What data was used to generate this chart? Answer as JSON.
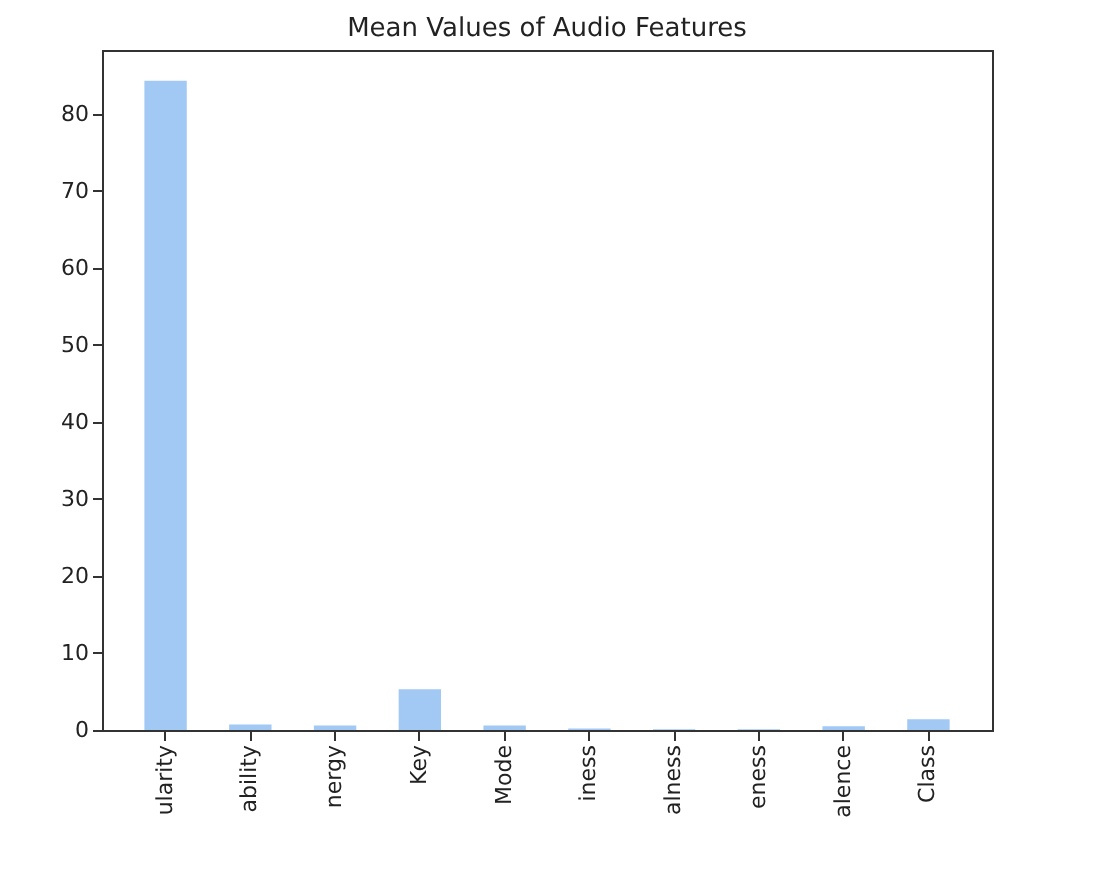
{
  "chart_data": {
    "type": "bar",
    "title": "Mean Values of Audio Features",
    "categories": [
      "ularity",
      "ability",
      "nergy",
      "Key",
      "Mode",
      "iness",
      "alness",
      "eness",
      "alence",
      "Class"
    ],
    "values": [
      84.3,
      0.7,
      0.6,
      5.3,
      0.6,
      0.2,
      0.1,
      0.1,
      0.5,
      1.4
    ],
    "color": "#a1c9f4",
    "ylim": [
      0,
      88.3
    ],
    "yticks": [
      0,
      10,
      20,
      30,
      40,
      50,
      60,
      70,
      80
    ],
    "grid": false
  }
}
